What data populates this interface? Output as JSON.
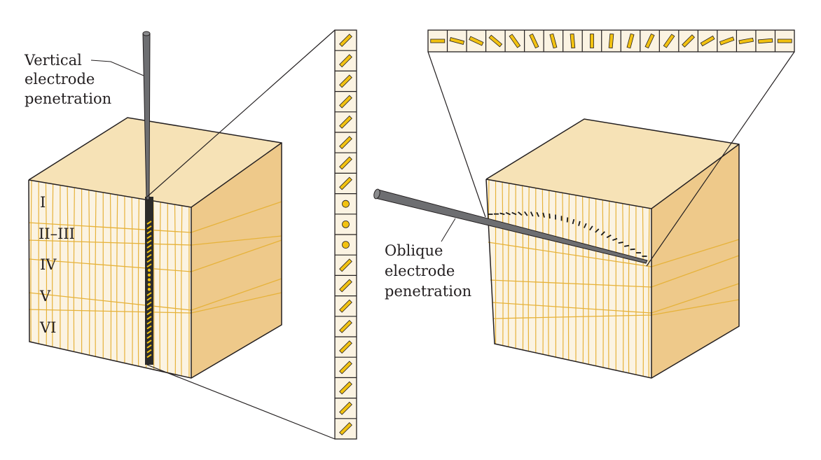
{
  "labels": {
    "vertical": [
      "Vertical",
      "electrode",
      "penetration"
    ],
    "oblique": [
      "Oblique",
      "electrode",
      "penetration"
    ],
    "layers": [
      "I",
      "II–III",
      "IV",
      "V",
      "VI"
    ]
  },
  "colors": {
    "top_face": "#f6e2b6",
    "front_face": "#fbf3e2",
    "side_face": "#eec98a",
    "column_line": "#e6b23a",
    "orientation_bar": "#f2c211",
    "outline": "#231f20",
    "electrode": "#6d6e71"
  },
  "vertical_strip": {
    "orientations": [
      "oriented",
      "oriented",
      "oriented",
      "oriented",
      "oriented",
      "oriented",
      "oriented",
      "oriented",
      "unoriented",
      "unoriented",
      "unoriented",
      "oriented",
      "oriented",
      "oriented",
      "oriented",
      "oriented",
      "oriented",
      "oriented",
      "oriented",
      "oriented"
    ]
  },
  "oblique_strip": {
    "angles_deg": [
      0,
      -15,
      -25,
      -40,
      -55,
      -65,
      -75,
      -85,
      -90,
      85,
      75,
      65,
      55,
      45,
      30,
      20,
      10,
      5,
      0
    ]
  }
}
